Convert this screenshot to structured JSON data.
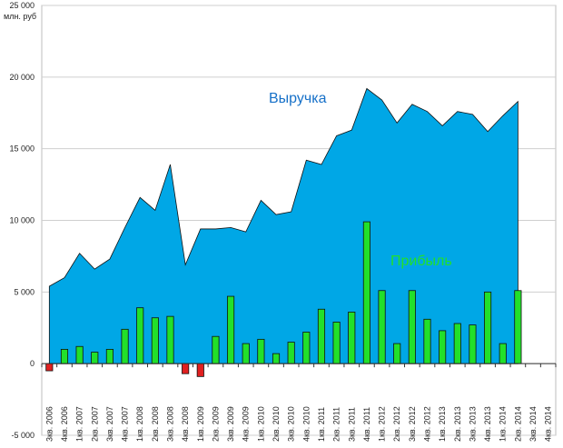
{
  "chart_data": {
    "type": "bar+area",
    "unit_label": "млн. руб",
    "annotations": {
      "revenue": "Выручка",
      "profit": "Прибыль"
    },
    "colors": {
      "revenue": "#00A7E6",
      "profit_positive": "#22E02A",
      "profit_negative": "#E02020",
      "grid": "#cfcfcf",
      "line": "#111111"
    },
    "ylim": [
      -5000,
      25000
    ],
    "yticks": [
      -5000,
      0,
      5000,
      10000,
      15000,
      20000,
      25000
    ],
    "ytick_labels": [
      "-5 000",
      "0",
      "5 000",
      "10 000",
      "15 000",
      "20 000",
      "25 000"
    ],
    "categories": [
      "3кв. 2006",
      "4кв. 2006",
      "1кв. 2007",
      "2кв. 2007",
      "3кв. 2007",
      "4кв. 2007",
      "1кв. 2008",
      "2кв. 2008",
      "3кв. 2008",
      "4кв. 2008",
      "1кв. 2009",
      "2кв. 2009",
      "3кв. 2009",
      "4кв. 2009",
      "1кв. 2010",
      "2кв. 2010",
      "3кв. 2010",
      "4кв. 2010",
      "1кв. 2011",
      "2кв. 2011",
      "3кв. 2011",
      "4кв. 2011",
      "1кв. 2012",
      "2кв. 2012",
      "3кв. 2012",
      "4кв. 2012",
      "1кв. 2013",
      "2кв. 2013",
      "3кв. 2013",
      "4кв. 2013",
      "1кв. 2014",
      "2кв. 2014",
      "3кв. 2014",
      "4кв. 2014"
    ],
    "series": [
      {
        "name": "Выручка",
        "type": "area",
        "values": [
          5400,
          6000,
          7700,
          6600,
          7300,
          9500,
          11600,
          10700,
          13900,
          6900,
          9400,
          9400,
          9500,
          9200,
          11400,
          10400,
          10600,
          14200,
          13900,
          15900,
          16300,
          19200,
          18400,
          16800,
          18100,
          17600,
          16600,
          17600,
          17400,
          16200,
          17300,
          18300,
          null,
          null
        ]
      },
      {
        "name": "Прибыль",
        "type": "bar",
        "values": [
          -500,
          1000,
          1200,
          800,
          1000,
          2400,
          3900,
          3200,
          3300,
          -700,
          -900,
          1900,
          4700,
          1400,
          1700,
          700,
          1500,
          2200,
          3800,
          2900,
          3600,
          9900,
          5100,
          1400,
          5100,
          3100,
          2300,
          2800,
          2700,
          5000,
          1400,
          5100,
          null,
          null
        ]
      }
    ],
    "grid": true
  }
}
